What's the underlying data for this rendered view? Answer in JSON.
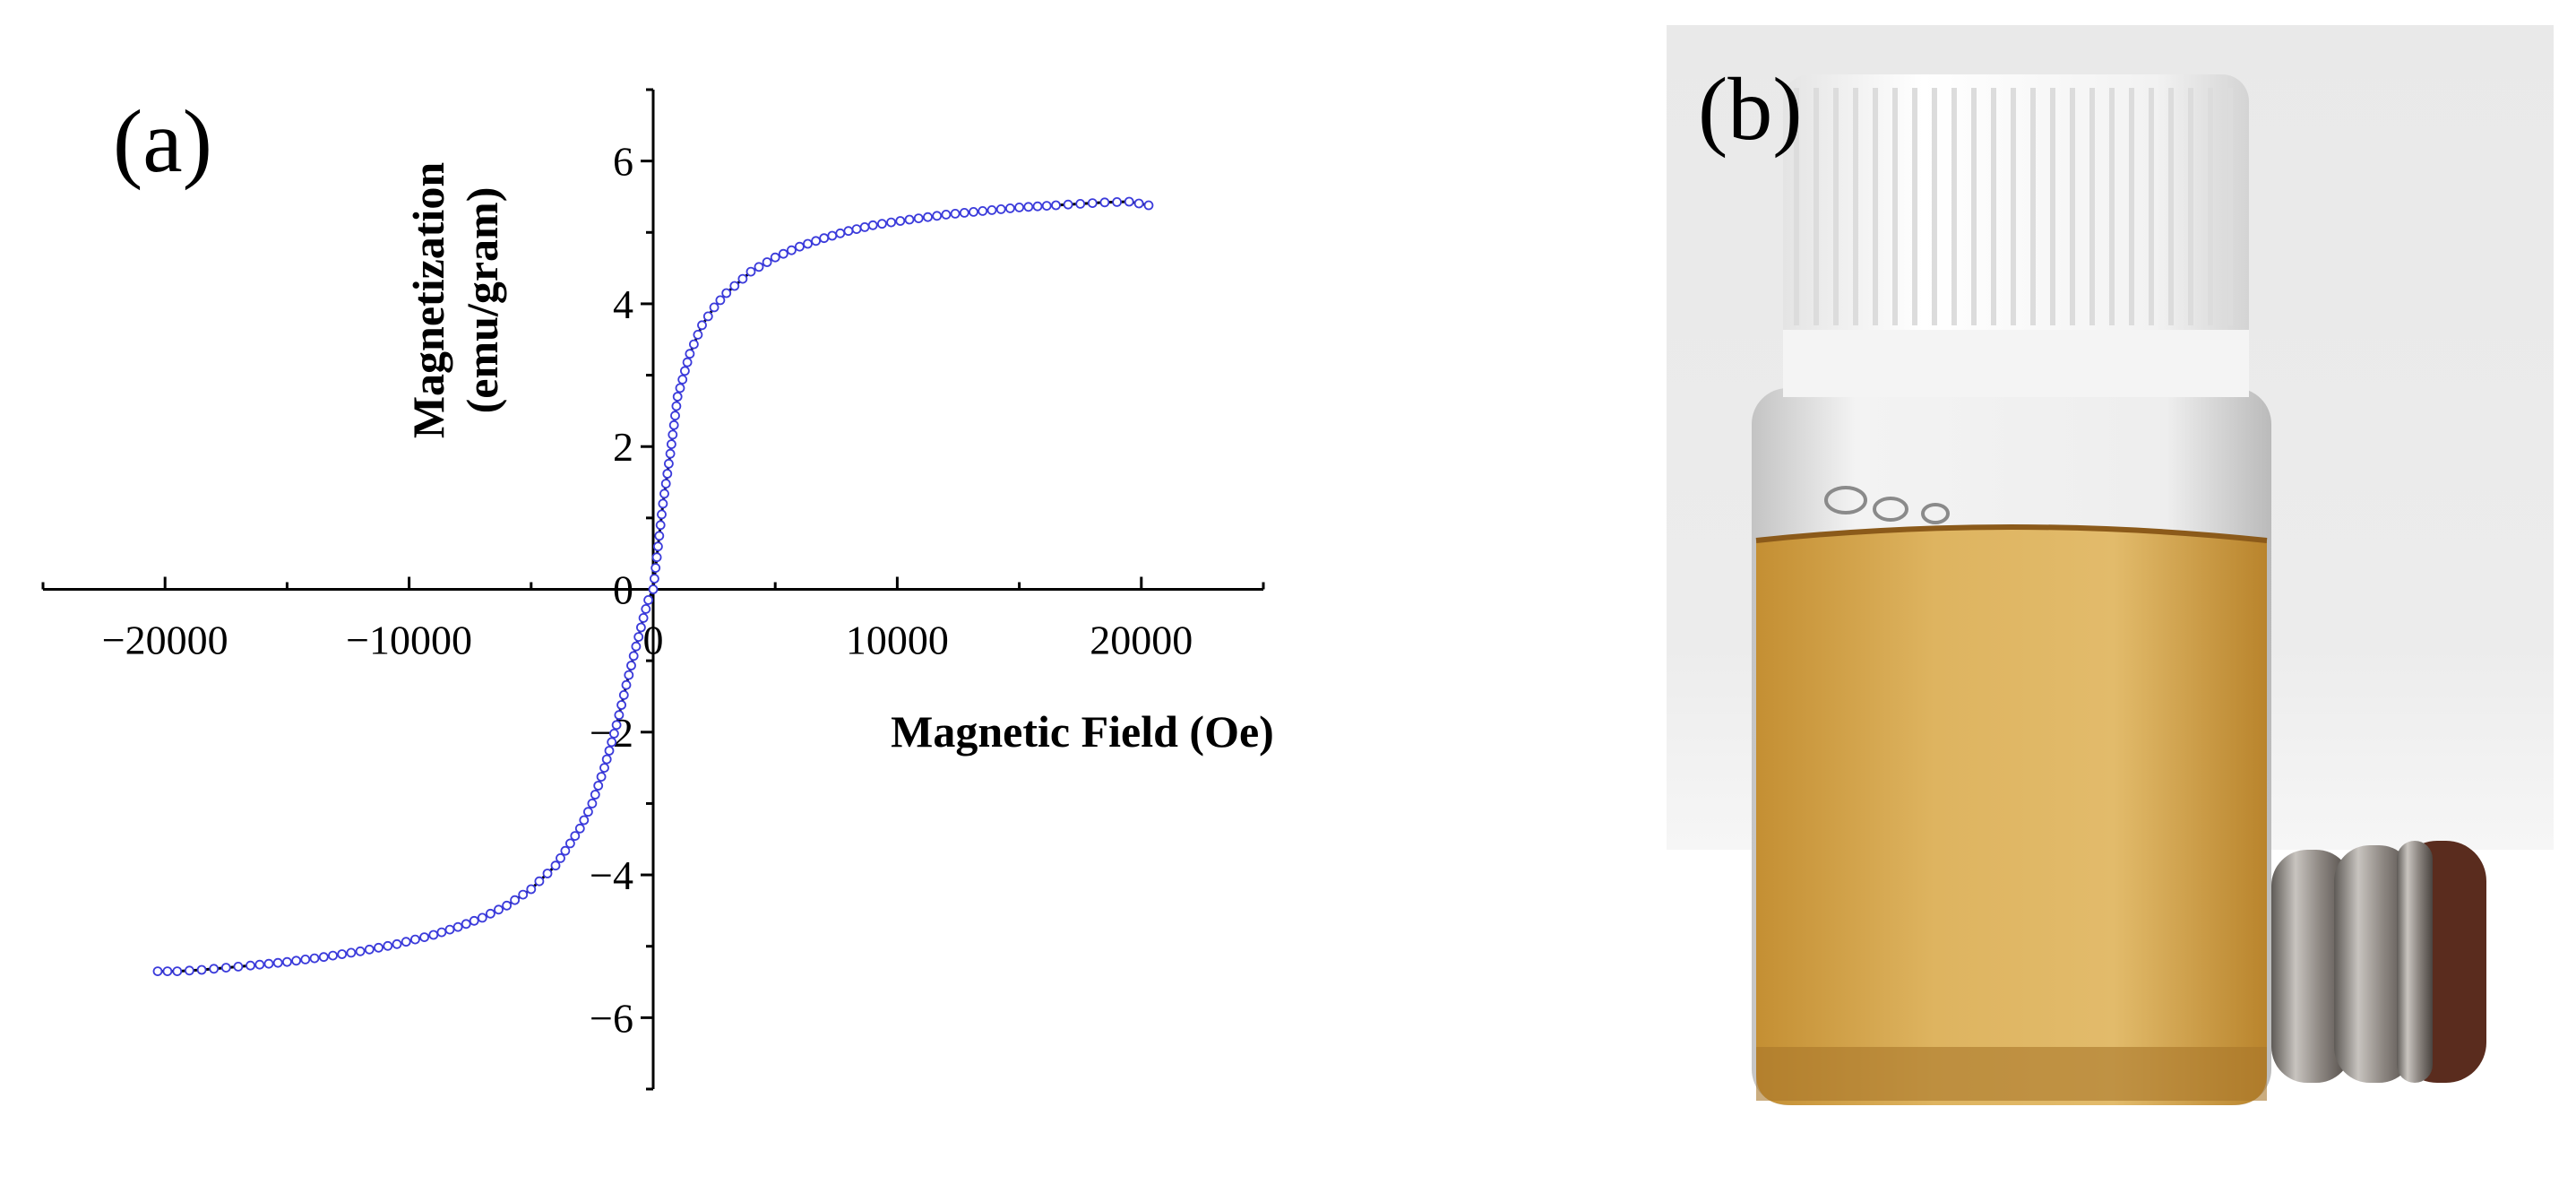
{
  "panel_a_label": "(a)",
  "panel_b_label": "(b)",
  "chart_data": {
    "type": "scatter",
    "title": "",
    "xlabel": "Magnetic Field (Oe)",
    "ylabel_line1": "Magnetization",
    "ylabel_line2": "(emu/gram)",
    "xlim": [
      -25000,
      25000
    ],
    "ylim": [
      -7,
      7
    ],
    "x_ticks": [
      -20000,
      -10000,
      0,
      10000,
      20000
    ],
    "x_tick_labels": [
      "−20000",
      "−10000",
      "0",
      "10000",
      "20000"
    ],
    "y_ticks": [
      -6,
      -4,
      -2,
      0,
      2,
      4,
      6
    ],
    "y_tick_labels": [
      "−6",
      "−4",
      "−2",
      "0",
      "2",
      "4",
      "6"
    ],
    "grid": false,
    "series": [
      {
        "marker_color": "#3b3bdb",
        "line_color": "#000000",
        "x": [
          -20300,
          -19500,
          -18500,
          -17500,
          -16500,
          -15000,
          -13500,
          -12000,
          -10500,
          -9000,
          -8000,
          -7000,
          -6000,
          -5000,
          -4000,
          -3000,
          -2500,
          -2000,
          -1500,
          -1000,
          -700,
          -400,
          -200,
          0,
          200,
          400,
          700,
          1000,
          1500,
          2000,
          2500,
          3000,
          4000,
          5000,
          6000,
          7000,
          8000,
          9000,
          10500,
          12000,
          13500,
          15000,
          16500,
          17500,
          18500,
          19500,
          20300
        ],
        "y": [
          -5.35,
          -5.35,
          -5.33,
          -5.3,
          -5.27,
          -5.22,
          -5.15,
          -5.07,
          -4.97,
          -4.84,
          -4.73,
          -4.6,
          -4.43,
          -4.2,
          -3.87,
          -3.35,
          -3.0,
          -2.5,
          -1.9,
          -1.2,
          -0.8,
          -0.4,
          -0.15,
          0.0,
          0.6,
          1.2,
          1.9,
          2.7,
          3.3,
          3.7,
          3.95,
          4.15,
          4.45,
          4.65,
          4.8,
          4.92,
          5.02,
          5.1,
          5.18,
          5.25,
          5.3,
          5.35,
          5.38,
          5.4,
          5.42,
          5.43,
          5.38
        ]
      }
    ]
  },
  "photo": {
    "background_color": "#ececec",
    "liquid_color": "#d9a84a",
    "cap_color": "#f7f7f7",
    "magnet_color": "#8a8580"
  }
}
